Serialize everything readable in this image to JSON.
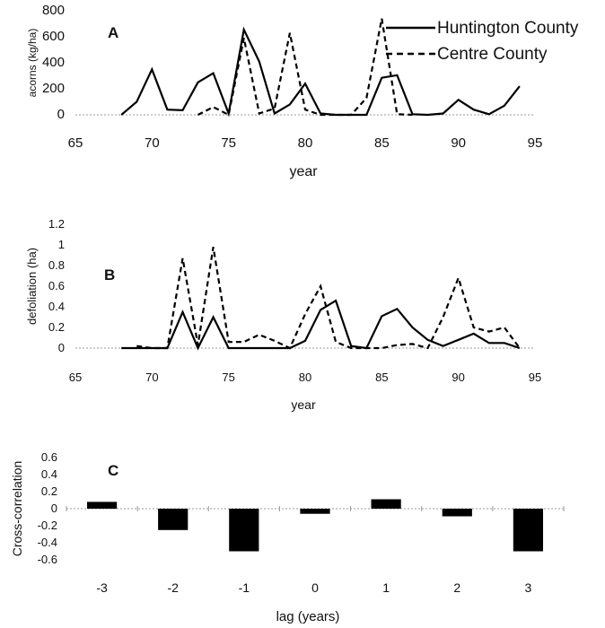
{
  "chart_data": [
    {
      "panel": "A",
      "type": "line",
      "xlabel": "year",
      "ylabel": "acorns (kg/ha)",
      "xlim": [
        65,
        95
      ],
      "ylim": [
        0,
        800
      ],
      "xticks": [
        65,
        70,
        75,
        80,
        85,
        90,
        95
      ],
      "yticks": [
        0,
        200,
        400,
        600,
        800
      ],
      "legend": "top-right",
      "series": [
        {
          "name": "Huntington County",
          "style": "solid",
          "x": [
            68,
            69,
            70,
            71,
            72,
            73,
            74,
            75,
            76,
            77,
            78,
            79,
            80,
            81,
            82,
            83,
            84,
            85,
            86,
            87,
            88,
            89,
            90,
            91,
            92,
            93,
            94
          ],
          "y": [
            0,
            100,
            350,
            40,
            35,
            250,
            320,
            10,
            655,
            410,
            10,
            80,
            240,
            10,
            0,
            0,
            0,
            285,
            305,
            5,
            0,
            10,
            115,
            40,
            5,
            70,
            220
          ]
        },
        {
          "name": "Centre County",
          "style": "dashed",
          "x": [
            73,
            74,
            75,
            76,
            77,
            78,
            79,
            80,
            81,
            82,
            83,
            84,
            85,
            86,
            87
          ],
          "y": [
            0,
            60,
            0,
            590,
            10,
            50,
            630,
            40,
            0,
            0,
            0,
            130,
            740,
            5,
            0
          ]
        }
      ]
    },
    {
      "panel": "B",
      "type": "line",
      "xlabel": "year",
      "ylabel": "defoliation (ha)",
      "xlim": [
        65,
        95
      ],
      "ylim": [
        0,
        1.2
      ],
      "xticks": [
        65,
        70,
        75,
        80,
        85,
        90,
        95
      ],
      "yticks": [
        0,
        0.2,
        0.4,
        0.6,
        0.8,
        1,
        1.2
      ],
      "ytick_labels": [
        "0",
        "0.2",
        "0.4",
        "0.6",
        "0.8",
        "1",
        "1.2"
      ],
      "series": [
        {
          "name": "Huntington County",
          "style": "solid",
          "x": [
            68,
            69,
            70,
            71,
            72,
            73,
            74,
            75,
            76,
            77,
            78,
            79,
            80,
            81,
            82,
            83,
            84,
            85,
            86,
            87,
            88,
            89,
            90,
            91,
            92,
            93,
            94
          ],
          "y": [
            0,
            0,
            0,
            0,
            0.35,
            0,
            0.3,
            0,
            0,
            0,
            0,
            0,
            0.07,
            0.37,
            0.46,
            0.02,
            0,
            0.31,
            0.38,
            0.2,
            0.08,
            0.02,
            0.08,
            0.14,
            0.05,
            0.05,
            0
          ]
        },
        {
          "name": "Centre County",
          "style": "dashed",
          "x": [
            69,
            70,
            71,
            72,
            73,
            74,
            75,
            76,
            77,
            78,
            79,
            80,
            81,
            82,
            83,
            84,
            85,
            86,
            87,
            88,
            89,
            90,
            91,
            92,
            93,
            94
          ],
          "y": [
            0.02,
            0,
            0,
            0.87,
            0.03,
            0.98,
            0.06,
            0.06,
            0.13,
            0.07,
            0,
            0.33,
            0.6,
            0.06,
            0,
            0,
            0,
            0.03,
            0.04,
            0,
            0.3,
            0.68,
            0.2,
            0.16,
            0.2,
            0
          ]
        }
      ]
    },
    {
      "panel": "C",
      "type": "bar",
      "xlabel": "lag (years)",
      "ylabel": "Cross-correlation",
      "ylim": [
        -0.6,
        0.6
      ],
      "yticks": [
        -0.6,
        -0.4,
        -0.2,
        0,
        0.2,
        0.4,
        0.6
      ],
      "ytick_labels": [
        "-0.6",
        "-0.4",
        "-0.2",
        "0",
        "0.2",
        "0.4",
        "0.6"
      ],
      "categories": [
        "-3",
        "-2",
        "-1",
        "0",
        "1",
        "2",
        "3"
      ],
      "values": [
        0.08,
        -0.25,
        -0.5,
        -0.06,
        0.11,
        -0.09,
        -0.5
      ]
    }
  ]
}
